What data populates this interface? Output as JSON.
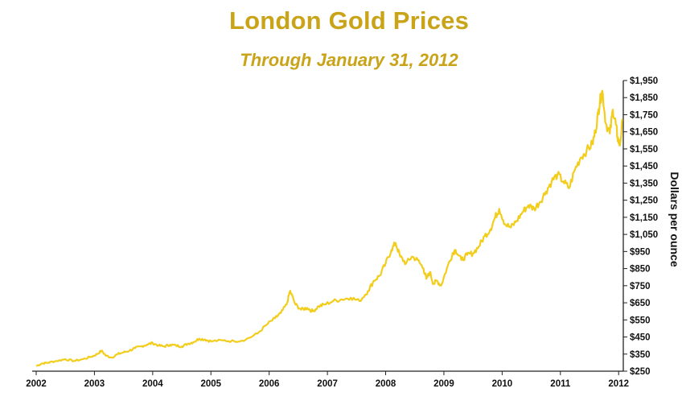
{
  "header": {
    "title": "London Gold Prices",
    "subtitle": "Through January 31, 2012"
  },
  "colors": {
    "line": "#f2cd1c",
    "title": "#c9a318",
    "axis": "#222222"
  },
  "chart_data": {
    "type": "line",
    "title": "London Gold Prices",
    "subtitle": "Through January 31, 2012",
    "xlabel": "",
    "ylabel": "Dollars per ounce",
    "xlim": [
      2002.0,
      2012.08
    ],
    "ylim": [
      250,
      1950
    ],
    "y_axis_position": "right",
    "grid": false,
    "legend": "none",
    "x_ticks": [
      2002,
      2003,
      2004,
      2005,
      2006,
      2007,
      2008,
      2009,
      2010,
      2011,
      2012
    ],
    "x_tick_labels": [
      "2002",
      "2003",
      "2004",
      "2005",
      "2006",
      "2007",
      "2008",
      "2009",
      "2010",
      "2011",
      "2012"
    ],
    "y_ticks": [
      250,
      350,
      450,
      550,
      650,
      750,
      850,
      950,
      1050,
      1150,
      1250,
      1350,
      1450,
      1550,
      1650,
      1750,
      1850,
      1950
    ],
    "y_tick_labels": [
      "$250",
      "$350",
      "$450",
      "$550",
      "$650",
      "$750",
      "$850",
      "$950",
      "$1,050",
      "$1,150",
      "$1,250",
      "$1,350",
      "$1,450",
      "$1,550",
      "$1,650",
      "$1,750",
      "$1,850",
      "$1,950"
    ],
    "series": [
      {
        "x": [
          2002.0,
          2002.1,
          2002.2,
          2002.35,
          2002.5,
          2002.65,
          2002.8,
          2002.95,
          2003.05,
          2003.12,
          2003.2,
          2003.3,
          2003.4,
          2003.5,
          2003.6,
          2003.7,
          2003.8,
          2003.9,
          2004.0,
          2004.1,
          2004.2,
          2004.3,
          2004.4,
          2004.5,
          2004.6,
          2004.7,
          2004.8,
          2004.9,
          2005.0,
          2005.2,
          2005.4,
          2005.6,
          2005.8,
          2005.95,
          2006.1,
          2006.2,
          2006.3,
          2006.36,
          2006.45,
          2006.55,
          2006.65,
          2006.75,
          2006.85,
          2006.95,
          2007.1,
          2007.25,
          2007.4,
          2007.55,
          2007.7,
          2007.8,
          2007.9,
          2008.0,
          2008.1,
          2008.17,
          2008.25,
          2008.35,
          2008.45,
          2008.55,
          2008.65,
          2008.7,
          2008.76,
          2008.82,
          2008.88,
          2008.95,
          2009.05,
          2009.15,
          2009.2,
          2009.3,
          2009.4,
          2009.5,
          2009.6,
          2009.7,
          2009.8,
          2009.88,
          2009.95,
          2010.05,
          2010.15,
          2010.25,
          2010.35,
          2010.45,
          2010.55,
          2010.65,
          2010.75,
          2010.85,
          2010.95,
          2011.05,
          2011.15,
          2011.25,
          2011.35,
          2011.45,
          2011.55,
          2011.6,
          2011.65,
          2011.68,
          2011.72,
          2011.78,
          2011.85,
          2011.9,
          2011.95,
          2011.98,
          2012.02,
          2012.07
        ],
        "y": [
          280,
          295,
          300,
          310,
          320,
          310,
          320,
          335,
          350,
          370,
          340,
          330,
          350,
          360,
          370,
          385,
          395,
          405,
          415,
          400,
          395,
          405,
          400,
          395,
          410,
          420,
          440,
          435,
          425,
          430,
          425,
          435,
          470,
          520,
          560,
          590,
          640,
          720,
          640,
          610,
          620,
          600,
          630,
          640,
          660,
          670,
          680,
          660,
          720,
          780,
          810,
          880,
          960,
          1000,
          920,
          880,
          920,
          900,
          850,
          790,
          830,
          760,
          780,
          750,
          850,
          940,
          960,
          900,
          930,
          940,
          980,
          1040,
          1080,
          1150,
          1200,
          1110,
          1090,
          1130,
          1180,
          1220,
          1200,
          1240,
          1300,
          1360,
          1400,
          1360,
          1320,
          1430,
          1500,
          1540,
          1580,
          1650,
          1760,
          1830,
          1890,
          1700,
          1640,
          1780,
          1700,
          1620,
          1570,
          1720
        ]
      }
    ]
  }
}
